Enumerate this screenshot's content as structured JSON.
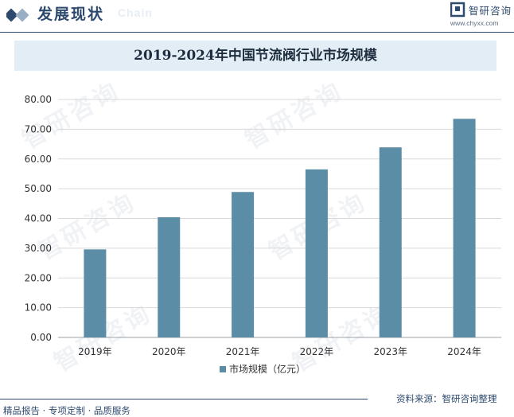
{
  "header": {
    "title": "发展现状",
    "subtitle": "Chain",
    "brand_name": "智研咨询",
    "brand_url": "www.chyxx.com"
  },
  "watermark": "智研咨询",
  "chart_data": {
    "type": "bar",
    "title": "2019-2024年中国节流阀行业市场规模",
    "categories": [
      "2019年",
      "2020年",
      "2021年",
      "2022年",
      "2023年",
      "2024年"
    ],
    "series": [
      {
        "name": "市场规模（亿元）",
        "values": [
          29.6,
          40.4,
          48.9,
          56.5,
          63.9,
          73.5
        ]
      }
    ],
    "ylim": [
      0,
      80
    ],
    "yticks": [
      "0.00",
      "10.00",
      "20.00",
      "30.00",
      "40.00",
      "50.00",
      "60.00",
      "70.00",
      "80.00"
    ],
    "xlabel": "",
    "ylabel": "",
    "legend": "bottom",
    "grid": true,
    "bar_color": "#5b8ea6"
  },
  "footer": {
    "left": "精品报告 · 专项定制 · 品质服务",
    "right": "资料来源：智研咨询整理"
  }
}
